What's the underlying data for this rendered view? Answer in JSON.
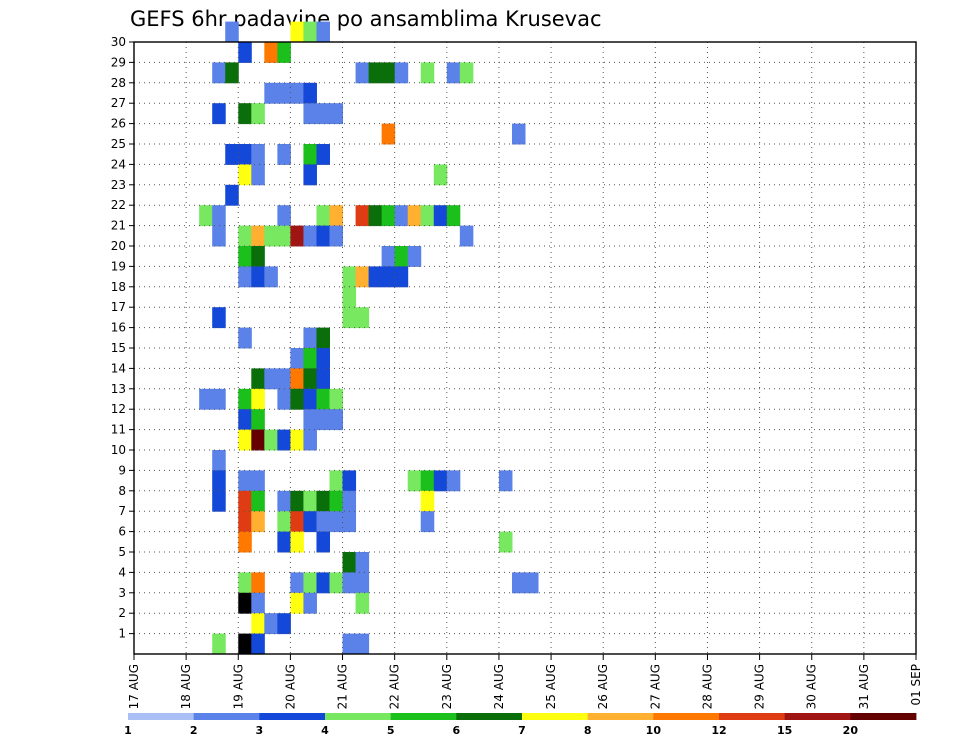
{
  "chart_data": {
    "type": "heatmap",
    "title": "GEFS 6hr padavine po ansamblima Krusevac",
    "xlabel": "",
    "ylabel": "",
    "x_ticks": [
      "17 AUG",
      "18 AUG",
      "19 AUG",
      "20 AUG",
      "21 AUG",
      "22 AUG",
      "23 AUG",
      "24 AUG",
      "25 AUG",
      "26 AUG",
      "27 AUG",
      "28 AUG",
      "29 AUG",
      "30 AUG",
      "31 AUG",
      "01 SEP"
    ],
    "y_ticks": [
      "1",
      "2",
      "3",
      "4",
      "5",
      "6",
      "7",
      "8",
      "9",
      "10",
      "11",
      "12",
      "13",
      "14",
      "15",
      "16",
      "17",
      "18",
      "19",
      "20",
      "21",
      "22",
      "23",
      "24",
      "25",
      "26",
      "27",
      "28",
      "29",
      "30"
    ],
    "xlim": [
      0,
      60
    ],
    "ylim": [
      0,
      30
    ],
    "x_unit_note_hidden": true,
    "grid": true,
    "legend_placement": "bottom",
    "legend": {
      "labels": [
        "1",
        "2",
        "3",
        "4",
        "5",
        "6",
        "7",
        "8",
        "10",
        "12",
        "15",
        "20"
      ],
      "colors": [
        "#aabff5",
        "#5a82e8",
        "#1448d8",
        "#78e860",
        "#1cc01c",
        "#0a6e0a",
        "#ffff10",
        "#ffb030",
        "#ff7800",
        "#e03c14",
        "#a01414",
        "#640000"
      ]
    },
    "cells": [
      [
        7,
        30,
        1
      ],
      [
        12,
        30,
        6
      ],
      [
        13,
        30,
        3
      ],
      [
        14,
        30,
        1
      ],
      [
        8,
        29,
        2
      ],
      [
        10,
        29,
        8
      ],
      [
        11,
        29,
        4
      ],
      [
        6,
        28,
        1
      ],
      [
        7,
        28,
        5
      ],
      [
        17,
        28,
        1
      ],
      [
        18,
        28,
        5
      ],
      [
        19,
        28,
        5
      ],
      [
        20,
        28,
        1
      ],
      [
        22,
        28,
        3
      ],
      [
        24,
        28,
        1
      ],
      [
        25,
        28,
        3
      ],
      [
        10,
        27,
        1
      ],
      [
        11,
        27,
        1
      ],
      [
        12,
        27,
        1
      ],
      [
        13,
        27,
        2
      ],
      [
        6,
        26,
        2
      ],
      [
        8,
        26,
        5
      ],
      [
        9,
        26,
        3
      ],
      [
        13,
        26,
        1
      ],
      [
        14,
        26,
        1
      ],
      [
        15,
        26,
        1
      ],
      [
        19,
        25,
        8
      ],
      [
        29,
        25,
        1
      ],
      [
        7,
        24,
        2
      ],
      [
        8,
        24,
        2
      ],
      [
        9,
        24,
        1
      ],
      [
        11,
        24,
        1
      ],
      [
        13,
        24,
        4
      ],
      [
        14,
        24,
        2
      ],
      [
        8,
        23,
        6
      ],
      [
        9,
        23,
        1
      ],
      [
        13,
        23,
        2
      ],
      [
        23,
        23,
        3
      ],
      [
        7,
        22,
        2
      ],
      [
        5,
        21,
        3
      ],
      [
        6,
        21,
        1
      ],
      [
        11,
        21,
        1
      ],
      [
        14,
        21,
        3
      ],
      [
        15,
        21,
        7
      ],
      [
        17,
        21,
        9
      ],
      [
        18,
        21,
        5
      ],
      [
        19,
        21,
        4
      ],
      [
        20,
        21,
        1
      ],
      [
        21,
        21,
        7
      ],
      [
        22,
        21,
        3
      ],
      [
        23,
        21,
        2
      ],
      [
        24,
        21,
        4
      ],
      [
        6,
        20,
        1
      ],
      [
        8,
        20,
        3
      ],
      [
        9,
        20,
        7
      ],
      [
        10,
        20,
        3
      ],
      [
        11,
        20,
        3
      ],
      [
        12,
        20,
        10
      ],
      [
        13,
        20,
        1
      ],
      [
        14,
        20,
        2
      ],
      [
        15,
        20,
        1
      ],
      [
        25,
        20,
        1
      ],
      [
        8,
        19,
        4
      ],
      [
        9,
        19,
        5
      ],
      [
        19,
        19,
        1
      ],
      [
        20,
        19,
        4
      ],
      [
        21,
        19,
        1
      ],
      [
        8,
        18,
        1
      ],
      [
        9,
        18,
        2
      ],
      [
        10,
        18,
        1
      ],
      [
        16,
        18,
        3
      ],
      [
        17,
        18,
        7
      ],
      [
        18,
        18,
        2
      ],
      [
        19,
        18,
        2
      ],
      [
        20,
        18,
        2
      ],
      [
        16,
        17,
        3
      ],
      [
        6,
        16,
        2
      ],
      [
        16,
        16,
        3
      ],
      [
        17,
        16,
        3
      ],
      [
        8,
        15,
        1
      ],
      [
        13,
        15,
        1
      ],
      [
        14,
        15,
        5
      ],
      [
        12,
        14,
        1
      ],
      [
        13,
        14,
        4
      ],
      [
        14,
        14,
        2
      ],
      [
        9,
        13,
        5
      ],
      [
        10,
        13,
        1
      ],
      [
        11,
        13,
        1
      ],
      [
        12,
        13,
        8
      ],
      [
        13,
        13,
        5
      ],
      [
        14,
        13,
        2
      ],
      [
        5,
        12,
        1
      ],
      [
        6,
        12,
        1
      ],
      [
        8,
        12,
        4
      ],
      [
        9,
        12,
        6
      ],
      [
        11,
        12,
        1
      ],
      [
        12,
        12,
        5
      ],
      [
        13,
        12,
        2
      ],
      [
        14,
        12,
        4
      ],
      [
        15,
        12,
        3
      ],
      [
        8,
        11,
        2
      ],
      [
        9,
        11,
        4
      ],
      [
        13,
        11,
        1
      ],
      [
        14,
        11,
        1
      ],
      [
        15,
        11,
        1
      ],
      [
        8,
        10,
        6
      ],
      [
        9,
        10,
        11
      ],
      [
        10,
        10,
        3
      ],
      [
        11,
        10,
        2
      ],
      [
        12,
        10,
        6
      ],
      [
        13,
        10,
        1
      ],
      [
        6,
        9,
        1
      ],
      [
        6,
        8,
        2
      ],
      [
        8,
        8,
        1
      ],
      [
        9,
        8,
        1
      ],
      [
        15,
        8,
        3
      ],
      [
        16,
        8,
        2
      ],
      [
        21,
        8,
        3
      ],
      [
        22,
        8,
        4
      ],
      [
        23,
        8,
        2
      ],
      [
        24,
        8,
        1
      ],
      [
        28,
        8,
        1
      ],
      [
        6,
        7,
        2
      ],
      [
        8,
        7,
        9
      ],
      [
        9,
        7,
        4
      ],
      [
        11,
        7,
        1
      ],
      [
        12,
        7,
        5
      ],
      [
        13,
        7,
        3
      ],
      [
        14,
        7,
        5
      ],
      [
        15,
        7,
        4
      ],
      [
        16,
        7,
        1
      ],
      [
        22,
        7,
        6
      ],
      [
        8,
        6,
        9
      ],
      [
        9,
        6,
        7
      ],
      [
        11,
        6,
        3
      ],
      [
        12,
        6,
        9
      ],
      [
        13,
        6,
        2
      ],
      [
        14,
        6,
        1
      ],
      [
        15,
        6,
        1
      ],
      [
        16,
        6,
        1
      ],
      [
        22,
        6,
        1
      ],
      [
        8,
        5,
        8
      ],
      [
        11,
        5,
        2
      ],
      [
        12,
        5,
        6
      ],
      [
        14,
        5,
        2
      ],
      [
        28,
        5,
        3
      ],
      [
        16,
        4,
        5
      ],
      [
        17,
        4,
        1
      ],
      [
        8,
        3,
        3
      ],
      [
        9,
        3,
        8
      ],
      [
        12,
        3,
        1
      ],
      [
        13,
        3,
        3
      ],
      [
        14,
        3,
        2
      ],
      [
        15,
        3,
        3
      ],
      [
        16,
        3,
        1
      ],
      [
        17,
        3,
        1
      ],
      [
        29,
        3,
        1
      ],
      [
        30,
        3,
        1
      ],
      [
        8,
        2,
        12
      ],
      [
        9,
        2,
        1
      ],
      [
        12,
        2,
        6
      ],
      [
        13,
        2,
        1
      ],
      [
        17,
        2,
        3
      ],
      [
        9,
        1,
        6
      ],
      [
        10,
        1,
        1
      ],
      [
        11,
        1,
        2
      ],
      [
        6,
        0,
        3
      ],
      [
        8,
        0,
        12
      ],
      [
        9,
        0,
        2
      ],
      [
        16,
        0,
        1
      ],
      [
        17,
        0,
        1
      ]
    ]
  }
}
